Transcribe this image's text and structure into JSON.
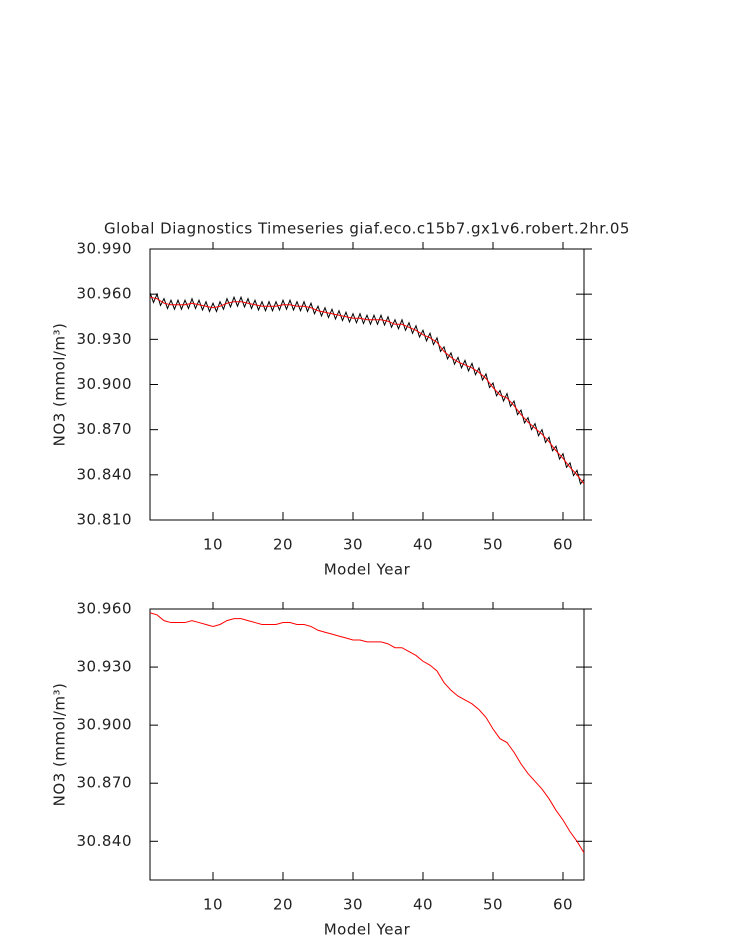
{
  "chart_data": [
    {
      "type": "line",
      "title": "Global Diagnostics Timeseries giaf.eco.c15b7.gx1v6.robert.2hr.05",
      "xlabel": "Model Year",
      "ylabel": "NO3 (mmol/m³)",
      "xlim": [
        1,
        63
      ],
      "xticks": [
        10,
        20,
        30,
        40,
        50,
        60
      ],
      "ylim": [
        30.81,
        30.99
      ],
      "yticks": [
        {
          "value": 30.81,
          "label": "30.810"
        },
        {
          "value": 30.84,
          "label": "30.840"
        },
        {
          "value": 30.87,
          "label": "30.870"
        },
        {
          "value": 30.9,
          "label": "30.900"
        },
        {
          "value": 30.93,
          "label": "30.930"
        },
        {
          "value": 30.96,
          "label": "30.960"
        },
        {
          "value": 30.99,
          "label": "30.990"
        }
      ],
      "series": [
        {
          "color": "#000000",
          "x": [
            1,
            1.5,
            2,
            2.5,
            3,
            3.5,
            4,
            4.5,
            5,
            5.5,
            6,
            6.5,
            7,
            7.5,
            8,
            8.5,
            9,
            9.5,
            10,
            10.5,
            11,
            11.5,
            12,
            12.5,
            13,
            13.5,
            14,
            14.5,
            15,
            15.5,
            16,
            16.5,
            17,
            17.5,
            18,
            18.5,
            19,
            19.5,
            20,
            20.5,
            21,
            21.5,
            22,
            22.5,
            23,
            23.5,
            24,
            24.5,
            25,
            25.5,
            26,
            26.5,
            27,
            27.5,
            28,
            28.5,
            29,
            29.5,
            30,
            30.5,
            31,
            31.5,
            32,
            32.5,
            33,
            33.5,
            34,
            34.5,
            35,
            35.5,
            36,
            36.5,
            37,
            37.5,
            38,
            38.5,
            39,
            39.5,
            40,
            40.5,
            41,
            41.5,
            42,
            42.5,
            43,
            43.5,
            44,
            44.5,
            45,
            45.5,
            46,
            46.5,
            47,
            47.5,
            48,
            48.5,
            49,
            49.5,
            50,
            50.5,
            51,
            51.5,
            52,
            52.5,
            53,
            53.5,
            54,
            54.5,
            55,
            55.5,
            56,
            56.5,
            57,
            57.5,
            58,
            58.5,
            59,
            59.5,
            60,
            60.5,
            61,
            61.5,
            62,
            62.5,
            63
          ],
          "values": [
            30.961,
            30.9545,
            30.96,
            30.9525,
            30.957,
            30.9505,
            30.956,
            30.95,
            30.956,
            30.95,
            30.956,
            30.9505,
            30.957,
            30.9505,
            30.956,
            30.9495,
            30.955,
            30.9485,
            30.954,
            30.9485,
            30.955,
            30.95,
            30.957,
            30.9515,
            30.958,
            30.952,
            30.958,
            30.9515,
            30.957,
            30.9505,
            30.956,
            30.9495,
            30.955,
            30.949,
            30.955,
            30.949,
            30.955,
            30.9495,
            30.956,
            30.95,
            30.956,
            30.9495,
            30.955,
            30.949,
            30.955,
            30.9485,
            30.954,
            30.947,
            30.952,
            30.9455,
            30.951,
            30.9445,
            30.95,
            30.9435,
            30.949,
            30.9425,
            30.948,
            30.9415,
            30.947,
            30.941,
            30.947,
            30.9405,
            30.946,
            30.94,
            30.946,
            30.94,
            30.946,
            30.9395,
            30.945,
            30.938,
            30.943,
            30.937,
            30.943,
            30.936,
            30.941,
            30.934,
            30.939,
            30.9315,
            30.936,
            30.929,
            30.934,
            30.9265,
            30.931,
            30.922,
            30.925,
            30.917,
            30.921,
            30.9135,
            30.918,
            30.911,
            30.916,
            30.909,
            30.914,
            30.9065,
            30.911,
            30.903,
            30.907,
            30.898,
            30.901,
            30.8925,
            30.896,
            30.889,
            30.894,
            30.8855,
            30.889,
            30.88,
            30.883,
            30.8745,
            30.878,
            30.87,
            30.874,
            30.866,
            30.87,
            30.8615,
            30.865,
            30.856,
            30.859,
            30.8505,
            30.854,
            30.845,
            30.848,
            30.8395,
            30.843,
            30.834,
            30.837
          ]
        },
        {
          "color": "#ff0000",
          "x": [
            1,
            2,
            3,
            4,
            5,
            6,
            7,
            8,
            9,
            10,
            11,
            12,
            13,
            14,
            15,
            16,
            17,
            18,
            19,
            20,
            21,
            22,
            23,
            24,
            25,
            26,
            27,
            28,
            29,
            30,
            31,
            32,
            33,
            34,
            35,
            36,
            37,
            38,
            39,
            40,
            41,
            42,
            43,
            44,
            45,
            46,
            47,
            48,
            49,
            50,
            51,
            52,
            53,
            54,
            55,
            56,
            57,
            58,
            59,
            60,
            61,
            62,
            63
          ],
          "values": [
            30.958,
            30.957,
            30.954,
            30.953,
            30.953,
            30.953,
            30.954,
            30.953,
            30.952,
            30.951,
            30.952,
            30.954,
            30.955,
            30.955,
            30.954,
            30.953,
            30.952,
            30.952,
            30.952,
            30.953,
            30.953,
            30.952,
            30.952,
            30.951,
            30.949,
            30.948,
            30.947,
            30.946,
            30.945,
            30.944,
            30.944,
            30.943,
            30.943,
            30.943,
            30.942,
            30.94,
            30.94,
            30.938,
            30.936,
            30.933,
            30.931,
            30.928,
            30.922,
            30.918,
            30.915,
            30.913,
            30.911,
            30.908,
            30.904,
            30.898,
            30.893,
            30.891,
            30.886,
            30.88,
            30.875,
            30.871,
            30.867,
            30.862,
            30.856,
            30.851,
            30.845,
            30.84,
            30.834
          ]
        }
      ]
    },
    {
      "type": "line",
      "xlabel": "Model Year",
      "ylabel": "NO3 (mmol/m³)",
      "xlim": [
        1,
        63
      ],
      "xticks": [
        10,
        20,
        30,
        40,
        50,
        60
      ],
      "ylim": [
        30.82,
        30.96
      ],
      "yticks": [
        {
          "value": 30.84,
          "label": "30.840"
        },
        {
          "value": 30.87,
          "label": "30.870"
        },
        {
          "value": 30.9,
          "label": "30.900"
        },
        {
          "value": 30.93,
          "label": "30.930"
        },
        {
          "value": 30.96,
          "label": "30.960"
        }
      ],
      "series": [
        {
          "color": "#ff0000",
          "x": [
            1,
            2,
            3,
            4,
            5,
            6,
            7,
            8,
            9,
            10,
            11,
            12,
            13,
            14,
            15,
            16,
            17,
            18,
            19,
            20,
            21,
            22,
            23,
            24,
            25,
            26,
            27,
            28,
            29,
            30,
            31,
            32,
            33,
            34,
            35,
            36,
            37,
            38,
            39,
            40,
            41,
            42,
            43,
            44,
            45,
            46,
            47,
            48,
            49,
            50,
            51,
            52,
            53,
            54,
            55,
            56,
            57,
            58,
            59,
            60,
            61,
            62,
            63
          ],
          "values": [
            30.958,
            30.957,
            30.954,
            30.953,
            30.953,
            30.953,
            30.954,
            30.953,
            30.952,
            30.951,
            30.952,
            30.954,
            30.955,
            30.955,
            30.954,
            30.953,
            30.952,
            30.952,
            30.952,
            30.953,
            30.953,
            30.952,
            30.952,
            30.951,
            30.949,
            30.948,
            30.947,
            30.946,
            30.945,
            30.944,
            30.944,
            30.943,
            30.943,
            30.943,
            30.942,
            30.94,
            30.94,
            30.938,
            30.936,
            30.933,
            30.931,
            30.928,
            30.922,
            30.918,
            30.915,
            30.913,
            30.911,
            30.908,
            30.904,
            30.898,
            30.893,
            30.891,
            30.886,
            30.88,
            30.875,
            30.871,
            30.867,
            30.862,
            30.856,
            30.851,
            30.845,
            30.84,
            30.834
          ]
        }
      ]
    }
  ]
}
